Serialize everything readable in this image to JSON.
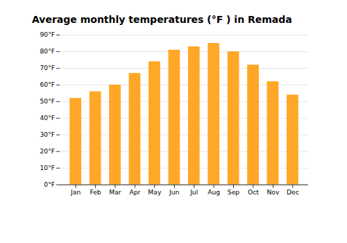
{
  "chart_data": {
    "type": "bar",
    "title": "Average monthly temperatures (°F ) in Remada",
    "categories": [
      "Jan",
      "Feb",
      "Mar",
      "Apr",
      "May",
      "Jun",
      "Jul",
      "Aug",
      "Sep",
      "Oct",
      "Nov",
      "Dec"
    ],
    "values": [
      52,
      56,
      60,
      67,
      74,
      81,
      83,
      85,
      80,
      72,
      62,
      54
    ],
    "color": "#FFA726",
    "ylim": [
      0,
      90
    ],
    "yticks": [
      {
        "value": 0,
        "label": "0°F"
      },
      {
        "value": 10,
        "label": "10°F"
      },
      {
        "value": 20,
        "label": "20°F"
      },
      {
        "value": 30,
        "label": "30°F"
      },
      {
        "value": 40,
        "label": "40°F"
      },
      {
        "value": 50,
        "label": "50°F"
      },
      {
        "value": 60,
        "label": "60°F"
      },
      {
        "value": 70,
        "label": "70°F"
      },
      {
        "value": 80,
        "label": "80°F"
      },
      {
        "value": 90,
        "label": "90°F"
      }
    ],
    "grid": true
  }
}
